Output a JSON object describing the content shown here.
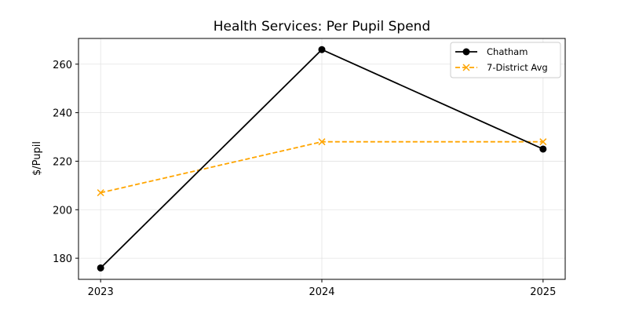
{
  "chart_data": {
    "type": "line",
    "title": "Health Services: Per Pupil Spend",
    "xlabel": "",
    "ylabel": "$/Pupil",
    "x": [
      2023,
      2024,
      2025
    ],
    "x_tick_labels": [
      "2023",
      "2024",
      "2025"
    ],
    "y_ticks": [
      180,
      200,
      220,
      240,
      260
    ],
    "y_tick_labels": [
      "180",
      "200",
      "220",
      "240",
      "260"
    ],
    "xlim": [
      2022.9,
      2025.1
    ],
    "ylim": [
      171.3,
      270.6
    ],
    "grid": true,
    "legend_position": "top-right",
    "series": [
      {
        "name": "Chatham",
        "values": [
          176,
          266,
          225
        ],
        "color": "#000000",
        "linestyle": "solid",
        "marker": "circle"
      },
      {
        "name": "7-District Avg",
        "values": [
          207,
          228,
          228
        ],
        "color": "#FFA500",
        "linestyle": "dashed",
        "marker": "x"
      }
    ]
  }
}
